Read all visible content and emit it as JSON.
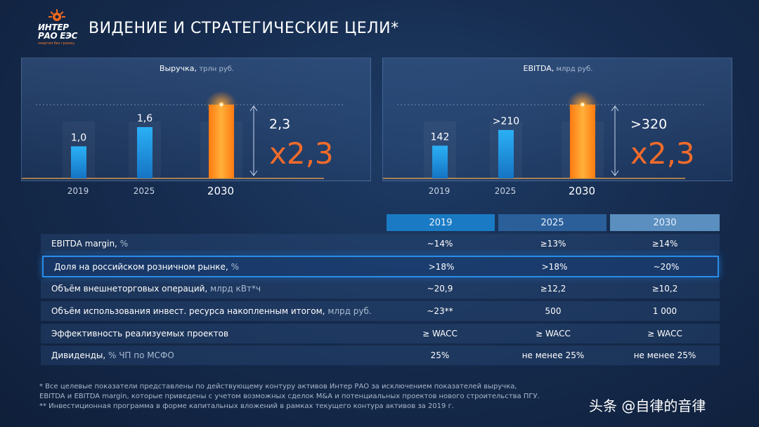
{
  "logo": {
    "line1": "ИНТЕР",
    "line2": "РАО ЕЭС",
    "tagline": "энергия без границ"
  },
  "title": "ВИДЕНИЕ И СТРАТЕГИЧЕСКИЕ ЦЕЛИ*",
  "chart_data": [
    {
      "type": "bar",
      "title": "Выручка,",
      "unit": "трлн руб.",
      "categories": [
        "2019",
        "2025",
        "2030"
      ],
      "values": [
        1.0,
        1.6,
        2.3
      ],
      "value_labels": [
        "1,0",
        "1,6",
        "2,3"
      ],
      "multiplier": "x2,3",
      "colors": [
        "#1e9fe6",
        "#1e9fe6",
        "#ff8a1c"
      ]
    },
    {
      "type": "bar",
      "title": "EBITDA,",
      "unit": "млрд руб.",
      "categories": [
        "2019",
        "2025",
        "2030"
      ],
      "values": [
        142,
        210,
        320
      ],
      "value_labels": [
        "142",
        ">210",
        ">320"
      ],
      "multiplier": "x2,3",
      "colors": [
        "#1e9fe6",
        "#1e9fe6",
        "#ff8a1c"
      ]
    }
  ],
  "table": {
    "columns": [
      "2019",
      "2025",
      "2030"
    ],
    "rows": [
      {
        "label": "EBITDA margin,",
        "unit": " %",
        "values": [
          "~14%",
          "≥13%",
          "≥14%"
        ]
      },
      {
        "label": "Доля на российском розничном рынке,",
        "unit": " %",
        "values": [
          ">18%",
          ">18%",
          "~20%"
        ]
      },
      {
        "label": "Объём внешнеторговых операций,",
        "unit": " млрд кВт*ч",
        "values": [
          "~20,9",
          "≥12,2",
          "≥10,2"
        ]
      },
      {
        "label": "Объём использования инвест. ресурса накопленным итогом,",
        "unit": " млрд руб.",
        "values": [
          "~23**",
          "500",
          "1 000"
        ]
      },
      {
        "label": "Эффективность реализуемых проектов",
        "unit": "",
        "values": [
          "≥ WACC",
          "≥ WACC",
          "≥ WACC"
        ]
      },
      {
        "label": "Дивиденды,",
        "unit": " % ЧП по МСФО",
        "values": [
          "25%",
          "не менее 25%",
          "не менее 25%"
        ]
      }
    ]
  },
  "footnotes": [
    "* Все целевые показатели представлены по действующему контуру активов Интер РАО за исключением показателей выручка,",
    "EBITDA и EBITDA margin, которые приведены с учетом возможных сделок M&A и потенциальных проектов нового строительства ПГУ.",
    "** Инвестиционная программа в форме капитальных вложений в рамках текущего контура активов  за 2019 г."
  ],
  "watermark": "头条 @自律的音律",
  "colors": {
    "accent_blue": "#1e9fe6",
    "accent_orange": "#ff8a1c",
    "highlight_border": "#2a8de8"
  }
}
